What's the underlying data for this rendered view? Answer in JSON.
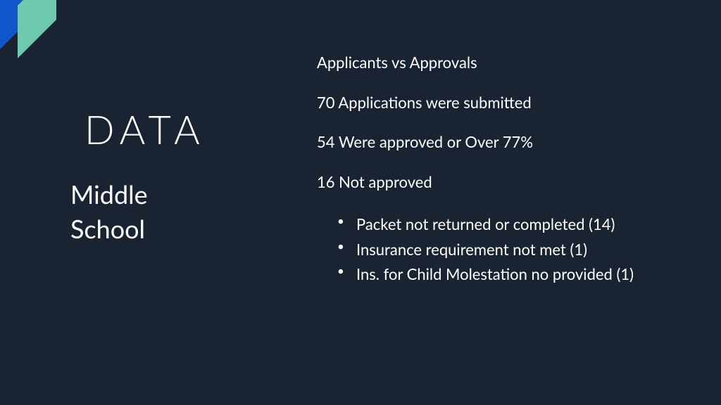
{
  "colors": {
    "background": "#1a2332",
    "text": "#ffffff",
    "accent_blue": "#1155cc",
    "accent_teal": "#6fc9b0"
  },
  "typography": {
    "title_fontsize": 56,
    "title_letterspacing": 8,
    "subtitle_fontsize": 36,
    "body_fontsize": 22
  },
  "left": {
    "title": "DATA",
    "subtitle_line1": "Middle",
    "subtitle_line2": "School"
  },
  "right": {
    "heading": "Applicants vs Approvals",
    "stats": [
      "70 Applications were submitted",
      "54 Were approved or Over 77%",
      "16 Not approved"
    ],
    "bullets": [
      "Packet not returned or completed (14)",
      "Insurance requirement not met (1)",
      "Ins. for Child Molestation no provided (1)"
    ]
  }
}
